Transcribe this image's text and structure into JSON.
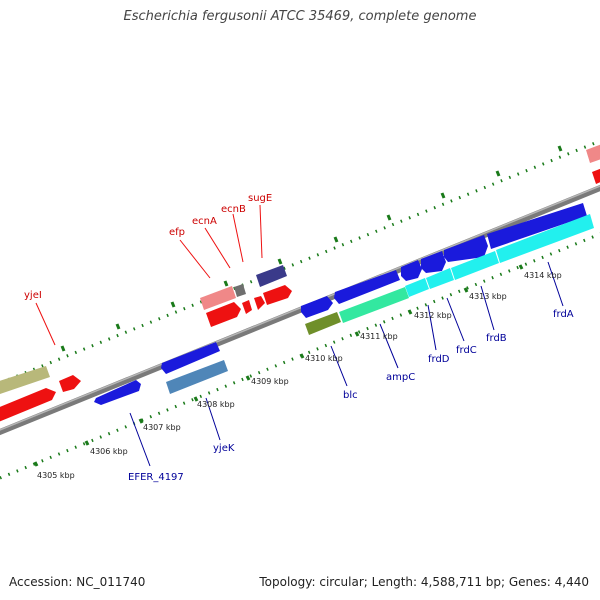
{
  "title": "Escherichia fergusonii ATCC 35469, complete genome",
  "footer": {
    "accession": "Accession: NC_011740",
    "summary": "Topology: circular; Length: 4,588,711 bp; Genes: 4,440"
  },
  "colors": {
    "backbone": "#7a7a7a",
    "tick": "#1a7a1a",
    "label_forward": "#cc0000",
    "label_reverse": "#000099",
    "label_kbp": "#222222"
  },
  "kbp_labels": [
    "4305 kbp",
    "4306 kbp",
    "4307 kbp",
    "4308 kbp",
    "4309 kbp",
    "4310 kbp",
    "4311 kbp",
    "4312 kbp",
    "4313 kbp",
    "4314 kbp"
  ],
  "gene_labels_forward": [
    "yjeI",
    "efp",
    "ecnA",
    "ecnB",
    "sugE"
  ],
  "gene_labels_reverse": [
    "EFER_4197",
    "yjeK",
    "blc",
    "ampC",
    "frdD",
    "frdC",
    "frdB",
    "frdA"
  ]
}
